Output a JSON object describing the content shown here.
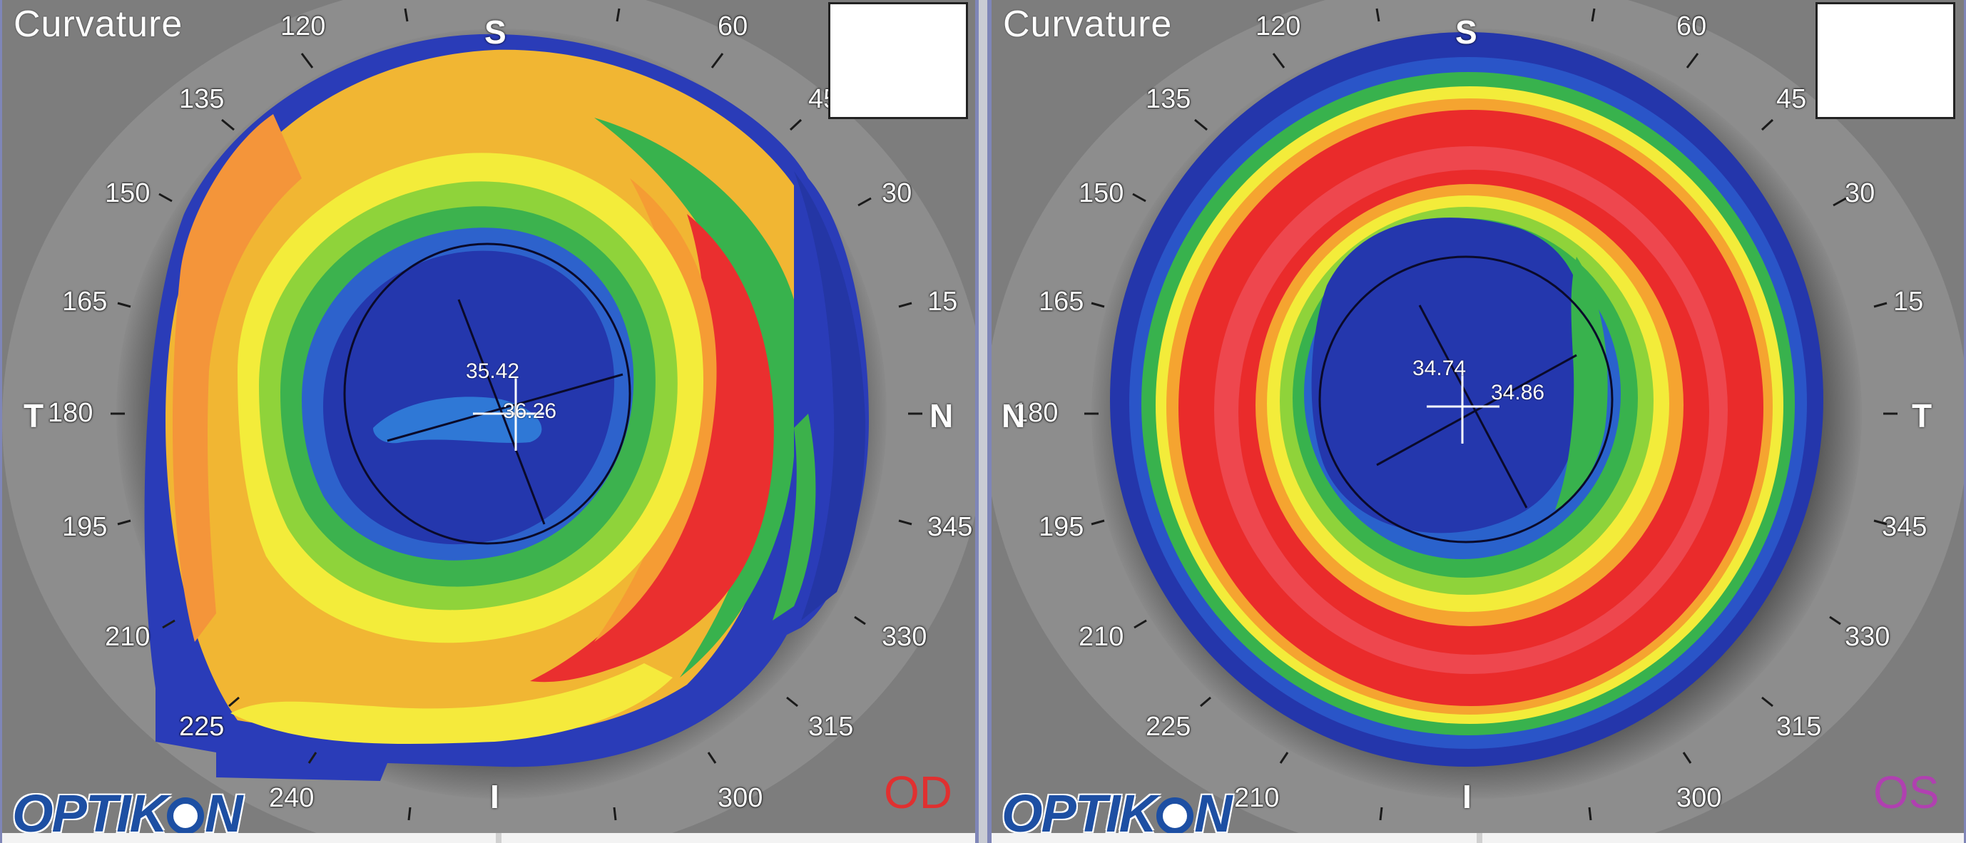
{
  "panels": [
    {
      "id": "left",
      "title": "Curvature",
      "eye": "OD",
      "eye_color": "#e03030",
      "brand": "OPTIKON",
      "top_letter": "S",
      "bottom_letter": "I",
      "left_letter": "T",
      "right_letter": "N",
      "angle_labels": [
        "120",
        "60",
        "135",
        "45",
        "150",
        "30",
        "165",
        "15",
        "180",
        "195",
        "345",
        "210",
        "330",
        "225",
        "315",
        "240",
        "300"
      ],
      "readings": {
        "flat": "35.42",
        "steep": "36.26"
      }
    },
    {
      "id": "right",
      "title": "Curvature",
      "eye": "OS",
      "eye_color": "#b040b0",
      "brand": "OPTIKON",
      "top_letter": "S",
      "bottom_letter": "I",
      "left_letter": "N",
      "right_letter": "T",
      "angle_labels": [
        "120",
        "60",
        "135",
        "45",
        "150",
        "30",
        "165",
        "15",
        "180",
        "195",
        "345",
        "210",
        "330",
        "225",
        "315",
        "210",
        "300"
      ],
      "readings": {
        "flat": "34.74",
        "steep": "34.86"
      }
    }
  ],
  "map_colors": {
    "deep_blue": "#1e2fa8",
    "blue": "#2a55c8",
    "cyan_blue": "#2a7ad8",
    "green": "#2fb54a",
    "light_green": "#7fd13a",
    "yellow": "#f3ef3a",
    "orange": "#f5a430",
    "red": "#ea2b2b",
    "pink": "#f05a6a"
  }
}
